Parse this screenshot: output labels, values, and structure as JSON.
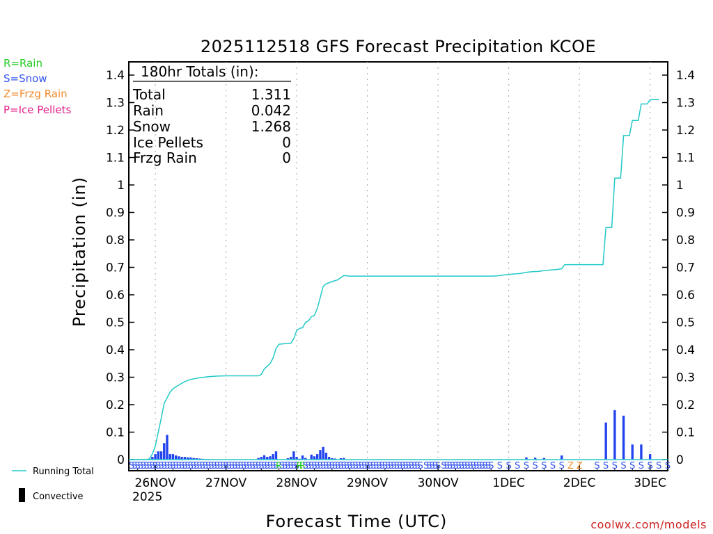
{
  "chart_data": {
    "type": "bar",
    "title": "2025112518 GFS Forecast Precipitation KCOE",
    "xlabel": "Forecast Time (UTC)",
    "ylabel": "Precipitation (in)",
    "ylim": [
      0,
      1.4
    ],
    "yticks": [
      0,
      0.1,
      0.2,
      0.3,
      0.4,
      0.5,
      0.6,
      0.7,
      0.8,
      0.9,
      1,
      1.1,
      1.2,
      1.3,
      1.4
    ],
    "ytick_labels": [
      "0",
      "0.1",
      "0.2",
      "0.3",
      "0.4",
      "0.5",
      "0.6",
      "0.7",
      "0.8",
      "0.9",
      "1",
      "1.1",
      "1.2",
      "1.3",
      "1.4"
    ],
    "xlim_hours": [
      -3,
      180
    ],
    "x_unit": "forecast hour from 2025-11-25 18Z",
    "days": [
      {
        "label": "26NOV",
        "hour": 6
      },
      {
        "label": "27NOV",
        "hour": 30
      },
      {
        "label": "28NOV",
        "hour": 54
      },
      {
        "label": "29NOV",
        "hour": 78
      },
      {
        "label": "30NOV",
        "hour": 102
      },
      {
        "label": "1DEC",
        "hour": 126
      },
      {
        "label": "2DEC",
        "hour": 150
      },
      {
        "label": "3DEC",
        "hour": 174
      }
    ],
    "year_label": "2025",
    "running_total": {
      "name": "Running Total",
      "color": "#22c8c8",
      "points": [
        [
          -3,
          0
        ],
        [
          0,
          0
        ],
        [
          3,
          0
        ],
        [
          4,
          0.003
        ],
        [
          5,
          0.02
        ],
        [
          6,
          0.05
        ],
        [
          7,
          0.1
        ],
        [
          8,
          0.15
        ],
        [
          9,
          0.205
        ],
        [
          10,
          0.225
        ],
        [
          11,
          0.245
        ],
        [
          12,
          0.258
        ],
        [
          14,
          0.272
        ],
        [
          16,
          0.284
        ],
        [
          18,
          0.292
        ],
        [
          21,
          0.298
        ],
        [
          24,
          0.302
        ],
        [
          27,
          0.304
        ],
        [
          30,
          0.305
        ],
        [
          33,
          0.305
        ],
        [
          36,
          0.305
        ],
        [
          39,
          0.305
        ],
        [
          41,
          0.305
        ],
        [
          42,
          0.31
        ],
        [
          43,
          0.33
        ],
        [
          45,
          0.35
        ],
        [
          46,
          0.37
        ],
        [
          47,
          0.405
        ],
        [
          48,
          0.42
        ],
        [
          50,
          0.422
        ],
        [
          52,
          0.423
        ],
        [
          53,
          0.44
        ],
        [
          54,
          0.47
        ],
        [
          55,
          0.478
        ],
        [
          56,
          0.48
        ],
        [
          57,
          0.5
        ],
        [
          58,
          0.505
        ],
        [
          59,
          0.52
        ],
        [
          60,
          0.525
        ],
        [
          61,
          0.55
        ],
        [
          62,
          0.59
        ],
        [
          63,
          0.63
        ],
        [
          64,
          0.64
        ],
        [
          66,
          0.648
        ],
        [
          68,
          0.655
        ],
        [
          70,
          0.67
        ],
        [
          72,
          0.668
        ],
        [
          78,
          0.668
        ],
        [
          90,
          0.668
        ],
        [
          102,
          0.668
        ],
        [
          114,
          0.668
        ],
        [
          120,
          0.668
        ],
        [
          122,
          0.669
        ],
        [
          124,
          0.672
        ],
        [
          126,
          0.674
        ],
        [
          128,
          0.676
        ],
        [
          130,
          0.678
        ],
        [
          132,
          0.682
        ],
        [
          134,
          0.684
        ],
        [
          136,
          0.685
        ],
        [
          138,
          0.688
        ],
        [
          140,
          0.69
        ],
        [
          142,
          0.692
        ],
        [
          144,
          0.695
        ],
        [
          145,
          0.71
        ],
        [
          147,
          0.71
        ],
        [
          150,
          0.71
        ],
        [
          153,
          0.71
        ],
        [
          156,
          0.71
        ],
        [
          158,
          0.71
        ],
        [
          159,
          0.845
        ],
        [
          161,
          0.845
        ],
        [
          162,
          1.025
        ],
        [
          164,
          1.025
        ],
        [
          165,
          1.18
        ],
        [
          167,
          1.18
        ],
        [
          168,
          1.235
        ],
        [
          170,
          1.235
        ],
        [
          171,
          1.295
        ],
        [
          173,
          1.295
        ],
        [
          174,
          1.31
        ],
        [
          176,
          1.311
        ],
        [
          177,
          1.311
        ]
      ]
    },
    "bars": {
      "name": "Convective",
      "color": "#2244ee",
      "width_hours": 0.8,
      "points": [
        [
          4,
          0.003
        ],
        [
          5,
          0.01
        ],
        [
          6,
          0.02
        ],
        [
          7,
          0.03
        ],
        [
          8,
          0.03
        ],
        [
          9,
          0.06
        ],
        [
          10,
          0.09
        ],
        [
          11,
          0.02
        ],
        [
          12,
          0.02
        ],
        [
          13,
          0.015
        ],
        [
          14,
          0.012
        ],
        [
          15,
          0.01
        ],
        [
          16,
          0.01
        ],
        [
          17,
          0.008
        ],
        [
          18,
          0.008
        ],
        [
          19,
          0.006
        ],
        [
          20,
          0.005
        ],
        [
          21,
          0.004
        ],
        [
          22,
          0.003
        ],
        [
          23,
          0.002
        ],
        [
          24,
          0.002
        ],
        [
          41,
          0.006
        ],
        [
          42,
          0.01
        ],
        [
          43,
          0.016
        ],
        [
          44,
          0.01
        ],
        [
          45,
          0.012
        ],
        [
          46,
          0.02
        ],
        [
          47,
          0.03
        ],
        [
          51,
          0.005
        ],
        [
          52,
          0.01
        ],
        [
          53,
          0.03
        ],
        [
          54,
          0.01
        ],
        [
          55,
          0.003
        ],
        [
          56,
          0.015
        ],
        [
          57,
          0.006
        ],
        [
          59,
          0.018
        ],
        [
          60,
          0.012
        ],
        [
          61,
          0.02
        ],
        [
          62,
          0.035
        ],
        [
          63,
          0.046
        ],
        [
          64,
          0.025
        ],
        [
          65,
          0.01
        ],
        [
          66,
          0.005
        ],
        [
          67,
          0.004
        ],
        [
          69,
          0.005
        ],
        [
          70,
          0.006
        ],
        [
          132,
          0.008
        ],
        [
          135,
          0.007
        ],
        [
          138,
          0.006
        ],
        [
          144,
          0.015
        ],
        [
          159,
          0.135
        ],
        [
          162,
          0.18
        ],
        [
          165,
          0.16
        ],
        [
          168,
          0.055
        ],
        [
          171,
          0.055
        ],
        [
          174,
          0.02
        ]
      ]
    },
    "precip_type_markers": {
      "colors": {
        "S": "#3355ee",
        "R": "#22cc22",
        "Z": "#f08a2c"
      },
      "sequence": [
        {
          "from": -2,
          "to": 40,
          "step": 1,
          "ch": "S"
        },
        {
          "from": 41,
          "to": 47,
          "step": 1,
          "ch": "S"
        },
        {
          "from": 48,
          "to": 48,
          "step": 1,
          "ch": "R"
        },
        {
          "from": 49,
          "to": 54,
          "step": 1,
          "ch": "S"
        },
        {
          "from": 55,
          "to": 56,
          "step": 1,
          "ch": "R"
        },
        {
          "from": 57,
          "to": 96,
          "step": 1,
          "ch": "S"
        },
        {
          "from": 98,
          "to": 102,
          "step": 1,
          "ch": "S"
        },
        {
          "from": 104,
          "to": 120,
          "step": 1,
          "ch": "S"
        },
        {
          "from": 123,
          "to": 144,
          "step": 3,
          "ch": "S"
        },
        {
          "from": 147,
          "to": 150,
          "step": 3,
          "ch": "Z"
        },
        {
          "from": 156,
          "to": 180,
          "step": 3,
          "ch": "S"
        }
      ]
    },
    "totals_box": {
      "header": "180hr Totals (in):",
      "rows": [
        {
          "label": "Total",
          "value": "1.311"
        },
        {
          "label": "Rain",
          "value": "0.042"
        },
        {
          "label": "Snow",
          "value": "1.268"
        },
        {
          "label": "Ice Pellets",
          "value": "0"
        },
        {
          "label": "Frzg Rain",
          "value": "0"
        }
      ]
    }
  },
  "legend_types": [
    {
      "text": "R=Rain",
      "color": "#22cc22"
    },
    {
      "text": "S=Snow",
      "color": "#3355ee"
    },
    {
      "text": "Z=Frzg Rain",
      "color": "#f08a2c"
    },
    {
      "text": "P=Ice Pellets",
      "color": "#e0208a"
    }
  ],
  "legend_series": {
    "running_total": "Running Total",
    "convective": "Convective"
  },
  "footer": {
    "source": "coolwx.com/models",
    "source_color": "#cc2222"
  }
}
